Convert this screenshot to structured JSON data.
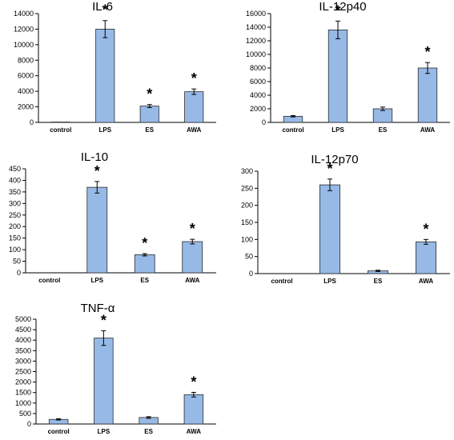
{
  "colors": {
    "bar_fill": "#97b9e6",
    "bar_stroke": "#2b2b2b",
    "axis": "#000000"
  },
  "chart_data": [
    {
      "type": "bar",
      "title": "IL-6",
      "categories": [
        "control",
        "LPS",
        "ES",
        "AWA"
      ],
      "values": [
        50,
        12000,
        2100,
        3950
      ],
      "error": [
        0,
        1100,
        200,
        350
      ],
      "significant": [
        false,
        true,
        true,
        true
      ],
      "annotation": "*",
      "ylim": [
        0,
        14000
      ],
      "yticks": [
        0,
        2000,
        4000,
        6000,
        8000,
        10000,
        12000,
        14000
      ]
    },
    {
      "type": "bar",
      "title": "IL-12p40",
      "categories": [
        "control",
        "LPS",
        "ES",
        "AWA"
      ],
      "values": [
        900,
        13600,
        2000,
        8000
      ],
      "error": [
        100,
        1300,
        250,
        800
      ],
      "significant": [
        false,
        true,
        false,
        true
      ],
      "annotation": "*",
      "ylim": [
        0,
        16000
      ],
      "yticks": [
        0,
        2000,
        4000,
        6000,
        8000,
        10000,
        12000,
        14000,
        16000
      ]
    },
    {
      "type": "bar",
      "title": "IL-10",
      "categories": [
        "control",
        "LPS",
        "ES",
        "AWA"
      ],
      "values": [
        0,
        370,
        78,
        135
      ],
      "error": [
        0,
        25,
        5,
        10
      ],
      "significant": [
        false,
        true,
        true,
        true
      ],
      "annotation": "*",
      "ylim": [
        0,
        450
      ],
      "yticks": [
        0,
        50,
        100,
        150,
        200,
        250,
        300,
        350,
        400,
        450
      ]
    },
    {
      "type": "bar",
      "title": "IL-12p70",
      "categories": [
        "control",
        "LPS",
        "ES",
        "AWA"
      ],
      "values": [
        0,
        260,
        8,
        93
      ],
      "error": [
        0,
        17,
        2,
        7
      ],
      "significant": [
        false,
        true,
        false,
        true
      ],
      "annotation": "*",
      "ylim": [
        0,
        300
      ],
      "yticks": [
        0,
        50,
        100,
        150,
        200,
        250,
        300
      ]
    },
    {
      "type": "bar",
      "title": "TNF-α",
      "categories": [
        "control",
        "LPS",
        "ES",
        "AWA"
      ],
      "values": [
        220,
        4100,
        310,
        1400
      ],
      "error": [
        30,
        350,
        40,
        110
      ],
      "significant": [
        false,
        true,
        false,
        true
      ],
      "annotation": "*",
      "ylim": [
        0,
        5000
      ],
      "yticks": [
        0,
        500,
        1000,
        1500,
        2000,
        2500,
        3000,
        3500,
        4000,
        4500,
        5000
      ]
    }
  ]
}
